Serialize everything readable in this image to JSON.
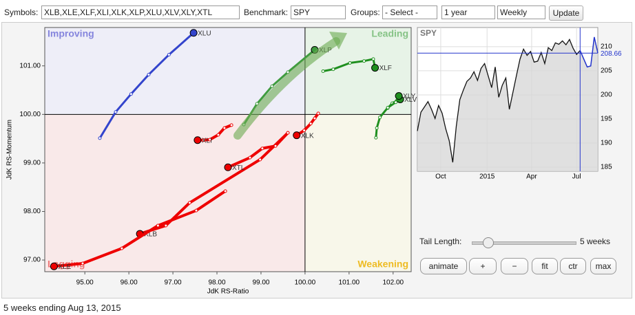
{
  "toolbar": {
    "symbols_label": "Symbols:",
    "symbols": "XLB,XLE,XLF,XLI,XLK,XLP,XLU,XLV,XLY,XTL",
    "benchmark_label": "Benchmark:",
    "benchmark": "SPY",
    "groups_label": "Groups:",
    "groups": "- Select -",
    "period": "1 year",
    "interval": "Weekly",
    "update": "Update"
  },
  "chart_data": [
    {
      "type": "rrg",
      "x_label": "JdK RS-Ratio",
      "y_label": "JdK RS-Momentum",
      "quadrants": [
        "Improving",
        "Leading",
        "Lagging",
        "Weakening"
      ],
      "center": [
        100,
        100
      ],
      "xlim": [
        94.09,
        102.41
      ],
      "ylim": [
        96.76,
        101.79
      ],
      "xticks": [
        {
          "value": 95,
          "label": "95.00"
        },
        {
          "value": 96,
          "label": "96.00"
        },
        {
          "value": 97,
          "label": "97.00"
        },
        {
          "value": 98,
          "label": "98.00"
        },
        {
          "value": 99,
          "label": "99.00"
        },
        {
          "value": 100,
          "label": "100.00"
        },
        {
          "value": 101,
          "label": "101.00"
        },
        {
          "value": 102,
          "label": "102.00"
        }
      ],
      "yticks": [
        {
          "value": 97,
          "label": "97.00"
        },
        {
          "value": 98,
          "label": "98.00"
        },
        {
          "value": 99,
          "label": "99.00"
        },
        {
          "value": 100,
          "label": "100.00"
        },
        {
          "value": 101,
          "label": "101.00"
        }
      ],
      "series": [
        {
          "name": "XLB",
          "color": "#ee0000",
          "x": [
            99.61,
            98.98,
            97.38,
            96.84,
            96.25
          ],
          "y": [
            99.62,
            99.07,
            98.18,
            97.71,
            97.54
          ]
        },
        {
          "name": "XLE",
          "color": "#ee0000",
          "x": [
            98.19,
            97.53,
            96.66,
            95.84,
            94.95,
            94.3
          ],
          "y": [
            98.42,
            98.02,
            97.71,
            97.24,
            96.93,
            96.87
          ]
        },
        {
          "name": "XLF",
          "color": "#1f8f1f",
          "x": [
            100.41,
            100.64,
            101.02,
            101.34,
            101.55,
            101.59
          ],
          "y": [
            100.89,
            100.93,
            101.06,
            101.1,
            101.14,
            100.96
          ]
        },
        {
          "name": "XLI",
          "color": "#ee0000",
          "x": [
            98.33,
            98.17,
            98.03,
            97.84,
            97.7,
            97.56
          ],
          "y": [
            99.78,
            99.72,
            99.58,
            99.48,
            99.47,
            99.47
          ]
        },
        {
          "name": "XLK",
          "color": "#ee0000",
          "x": [
            100.3,
            100.22,
            100.13,
            99.98,
            99.81
          ],
          "y": [
            100.02,
            99.92,
            99.81,
            99.67,
            99.57
          ]
        },
        {
          "name": "XLP",
          "color": "#3f9b3f",
          "x": [
            98.61,
            98.91,
            99.25,
            99.61,
            100.22
          ],
          "y": [
            99.79,
            100.22,
            100.58,
            100.87,
            101.33
          ]
        },
        {
          "name": "XLU",
          "color": "#3344cc",
          "x": [
            95.34,
            95.7,
            96.05,
            96.45,
            96.91,
            97.47
          ],
          "y": [
            99.51,
            100.05,
            100.42,
            100.82,
            101.23,
            101.68
          ]
        },
        {
          "name": "XLV",
          "color": "#1f8f1f",
          "x": [
            101.88,
            101.98,
            102.08,
            102.16
          ],
          "y": [
            100.13,
            100.23,
            100.28,
            100.31
          ]
        },
        {
          "name": "XLY",
          "color": "#1f8f1f",
          "x": [
            101.61,
            101.63,
            101.7,
            101.88,
            102.06,
            102.13
          ],
          "y": [
            99.52,
            99.72,
            99.94,
            100.14,
            100.25,
            100.38
          ]
        },
        {
          "name": "XTL",
          "color": "#ee0000",
          "x": [
            99.61,
            99.33,
            99.03,
            98.75,
            98.25
          ],
          "y": [
            99.62,
            99.35,
            99.3,
            99.11,
            98.91
          ]
        }
      ]
    },
    {
      "type": "line",
      "title": "SPY",
      "color": "#111111",
      "fill": "#d8d8d8",
      "tail_color": "#2233cc",
      "last_value": 208.66,
      "last_label": "208.66",
      "xlim": [
        0,
        51
      ],
      "ylim": [
        184.15,
        213.98
      ],
      "xticks": [
        {
          "value": 6.6,
          "label": "Oct"
        },
        {
          "value": 19.7,
          "label": "2015"
        },
        {
          "value": 32.3,
          "label": "Apr"
        },
        {
          "value": 45,
          "label": "Jul"
        }
      ],
      "yticks": [
        185,
        190,
        195,
        200,
        205,
        210
      ],
      "values": [
        192.5,
        196.4,
        197.5,
        198.6,
        197.0,
        195.1,
        197.8,
        196.2,
        193.0,
        190.5,
        186.0,
        193.5,
        199.0,
        201.0,
        202.8,
        203.5,
        204.8,
        203.0,
        205.5,
        206.5,
        204.0,
        201.5,
        205.8,
        199.5,
        202.0,
        203.5,
        197.0,
        200.5,
        204.0,
        207.4,
        209.5,
        208.2,
        209.0,
        206.8,
        207.0,
        208.8,
        206.5,
        209.8,
        209.2,
        210.8,
        210.5,
        211.2,
        210.4,
        211.5,
        209.7,
        208.4,
        209.2,
        207.5,
        205.8,
        206.0,
        212.0,
        208.7
      ]
    }
  ],
  "controls": {
    "tail_label": "Tail Length:",
    "tail_value": "5 weeks",
    "buttons": [
      "animate",
      "+",
      "−",
      "fit",
      "ctr",
      "max"
    ]
  },
  "footer": "5 weeks ending Aug 13, 2015"
}
